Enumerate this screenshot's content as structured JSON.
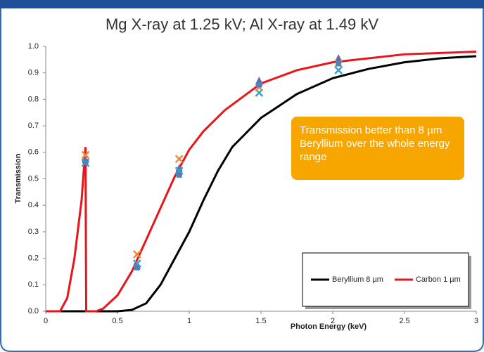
{
  "chart_data": {
    "type": "line",
    "title": "Mg X-ray at 1.25 kV; Al X-ray at 1.49 kV",
    "x_label": "Photon Energy (keV)",
    "y_label": "Transmission",
    "annotation": "Transmission better than 8 µm Beryllium over the whole energy range",
    "xlim": [
      0,
      3
    ],
    "ylim": [
      0,
      1
    ],
    "xticks": [
      0,
      0.5,
      1,
      1.5,
      2,
      2.5,
      3
    ],
    "yticks": [
      {
        "value": 0,
        "label": "0.0"
      },
      0.1,
      0.2,
      0.3,
      0.4,
      0.5,
      0.6,
      0.7,
      0.8,
      0.9,
      {
        "value": 1,
        "label": "1.0"
      }
    ],
    "grid": false,
    "legend": "lower right",
    "series": [
      {
        "name": "Beryllium 8 µm",
        "color": "#000000",
        "mark": "line",
        "x": [
          0,
          0.5,
          0.6,
          0.7,
          0.8,
          0.9,
          1.0,
          1.1,
          1.2,
          1.3,
          1.5,
          1.75,
          2.0,
          2.25,
          2.5,
          2.75,
          3.0
        ],
        "values": [
          0,
          0,
          0.005,
          0.03,
          0.1,
          0.2,
          0.3,
          0.42,
          0.53,
          0.62,
          0.73,
          0.82,
          0.88,
          0.915,
          0.94,
          0.955,
          0.963
        ]
      },
      {
        "name": "Carbon 1 µm",
        "color": "#e8151b",
        "mark": "line",
        "x": [
          0,
          0.1,
          0.15,
          0.2,
          0.25,
          0.277,
          0.282,
          0.35,
          0.4,
          0.5,
          0.6,
          0.7,
          0.8,
          0.9,
          1.0,
          1.1,
          1.25,
          1.5,
          1.75,
          2.0,
          2.5,
          3.0
        ],
        "values": [
          0,
          0,
          0.05,
          0.2,
          0.42,
          0.62,
          0,
          0,
          0.01,
          0.06,
          0.15,
          0.27,
          0.39,
          0.51,
          0.61,
          0.68,
          0.76,
          0.86,
          0.91,
          0.94,
          0.97,
          0.98
        ]
      },
      {
        "color": "#7b62a8",
        "mark": "triangle",
        "x": [
          0.277,
          0.637,
          0.93,
          1.487,
          2.04
        ],
        "values": [
          0.57,
          0.17,
          0.54,
          0.87,
          0.955
        ]
      },
      {
        "color": "#4a6fb5",
        "mark": "diamond",
        "x": [
          0.277,
          0.637,
          0.93,
          1.487,
          2.04
        ],
        "values": [
          0.565,
          0.17,
          0.53,
          0.86,
          0.94
        ]
      },
      {
        "color": "#35a3c9",
        "mark": "cross",
        "x": [
          0.277,
          0.637,
          0.93,
          1.487,
          2.04
        ],
        "values": [
          0.56,
          0.18,
          0.53,
          0.825,
          0.91
        ]
      },
      {
        "color": "#f08a3c",
        "mark": "cross",
        "x": [
          0.277,
          0.637,
          0.93,
          1.487,
          2.04
        ],
        "values": [
          0.59,
          0.215,
          0.575,
          0.845,
          0.935
        ]
      },
      {
        "color": "#4f81bd",
        "mark": "square",
        "x": [
          0.277,
          0.637,
          0.93,
          1.487,
          2.04
        ],
        "values": [
          0.565,
          0.165,
          0.515,
          0.855,
          0.935
        ]
      }
    ]
  }
}
